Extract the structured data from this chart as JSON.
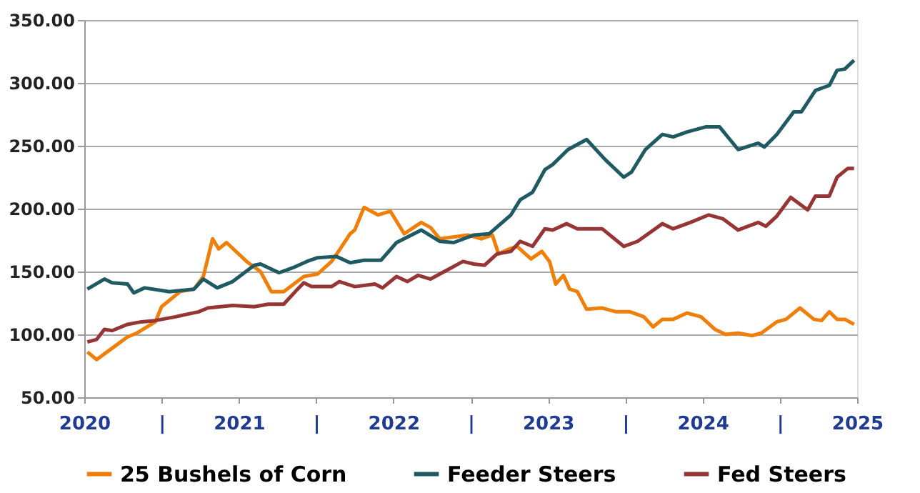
{
  "chart_data": {
    "type": "line",
    "xlim": [
      2020,
      2025
    ],
    "xticks": [
      2020,
      {
        "value": 2020.5,
        "label": "|"
      },
      2021,
      {
        "value": 2021.5,
        "label": "|"
      },
      2022,
      {
        "value": 2022.5,
        "label": "|"
      },
      2023,
      {
        "value": 2023.5,
        "label": "|"
      },
      2024,
      {
        "value": 2024.5,
        "label": "|"
      },
      2025
    ],
    "ylim": [
      50,
      350
    ],
    "yticks": [
      {
        "value": 50,
        "label": "50.00"
      },
      {
        "value": 100,
        "label": "100.00"
      },
      {
        "value": 150,
        "label": "150.00"
      },
      {
        "value": 200,
        "label": "200.00"
      },
      {
        "value": 250,
        "label": "250.00"
      },
      {
        "value": 300,
        "label": "300.00"
      },
      {
        "value": 350,
        "label": "350.00"
      }
    ],
    "grid": "y",
    "legend": "bottom",
    "marker": "none",
    "line_style": "solid",
    "series": [
      {
        "name": "25 Bushels of Corn",
        "color": "#f07f09",
        "x": [
          2020.02,
          2020.08,
          2020.18,
          2020.28,
          2020.34,
          2020.46,
          2020.5,
          2020.62,
          2020.71,
          2020.77,
          2020.83,
          2020.87,
          2020.92,
          2021.05,
          2021.14,
          2021.21,
          2021.29,
          2021.42,
          2021.51,
          2021.6,
          2021.65,
          2021.72,
          2021.75,
          2021.81,
          2021.9,
          2021.98,
          2022.07,
          2022.18,
          2022.24,
          2022.3,
          2022.48,
          2022.57,
          2022.64,
          2022.68,
          2022.75,
          2022.8,
          2022.89,
          2022.96,
          2023.01,
          2023.05,
          2023.1,
          2023.14,
          2023.19,
          2023.25,
          2023.35,
          2023.44,
          2023.53,
          2023.62,
          2023.68,
          2023.74,
          2023.81,
          2023.9,
          2023.99,
          2024.08,
          2024.15,
          2024.23,
          2024.32,
          2024.38,
          2024.48,
          2024.54,
          2024.63,
          2024.72,
          2024.77,
          2024.82,
          2024.87,
          2024.92,
          2024.98
        ],
        "values": [
          86,
          80,
          89,
          98,
          101,
          110,
          122,
          134,
          136,
          146,
          176,
          168,
          173,
          158,
          150,
          134,
          134,
          146,
          148,
          158,
          167,
          180,
          183,
          201,
          195,
          198,
          180,
          189,
          185,
          176,
          179,
          176,
          179,
          164,
          168,
          170,
          160,
          166,
          158,
          140,
          147,
          136,
          134,
          120,
          121,
          118,
          118,
          114,
          106,
          112,
          112,
          117,
          114,
          104,
          100,
          101,
          99,
          101,
          110,
          112,
          121,
          112,
          111,
          118,
          112,
          112,
          108
        ]
      },
      {
        "name": "Feeder Steers",
        "color": "#1f5a63",
        "x": [
          2020.02,
          2020.13,
          2020.18,
          2020.28,
          2020.32,
          2020.39,
          2020.55,
          2020.71,
          2020.77,
          2020.86,
          2020.96,
          2021.1,
          2021.14,
          2021.26,
          2021.35,
          2021.44,
          2021.51,
          2021.63,
          2021.72,
          2021.81,
          2021.92,
          2022.02,
          2022.18,
          2022.3,
          2022.39,
          2022.52,
          2022.62,
          2022.76,
          2022.82,
          2022.9,
          2022.98,
          2023.03,
          2023.13,
          2023.25,
          2023.37,
          2023.49,
          2023.54,
          2023.63,
          2023.74,
          2023.81,
          2023.9,
          2024.02,
          2024.11,
          2024.23,
          2024.36,
          2024.4,
          2024.48,
          2024.59,
          2024.64,
          2024.73,
          2024.82,
          2024.87,
          2024.92,
          2024.98
        ],
        "values": [
          136,
          144,
          141,
          140,
          133,
          137,
          134,
          136,
          144,
          137,
          142,
          155,
          156,
          149,
          153,
          158,
          161,
          162,
          157,
          159,
          159,
          173,
          183,
          174,
          173,
          179,
          180,
          195,
          207,
          213,
          231,
          235,
          247,
          255,
          239,
          225,
          229,
          247,
          259,
          257,
          261,
          265,
          265,
          247,
          252,
          249,
          259,
          277,
          277,
          294,
          298,
          310,
          311,
          318
        ]
      },
      {
        "name": "Fed Steers",
        "color": "#963634",
        "x": [
          2020.02,
          2020.08,
          2020.13,
          2020.18,
          2020.28,
          2020.37,
          2020.46,
          2020.59,
          2020.74,
          2020.8,
          2020.96,
          2021.1,
          2021.19,
          2021.29,
          2021.38,
          2021.42,
          2021.47,
          2021.6,
          2021.65,
          2021.75,
          2021.88,
          2021.93,
          2022.02,
          2022.09,
          2022.16,
          2022.24,
          2022.36,
          2022.45,
          2022.52,
          2022.59,
          2022.67,
          2022.76,
          2022.82,
          2022.9,
          2022.98,
          2023.03,
          2023.12,
          2023.19,
          2023.35,
          2023.49,
          2023.58,
          2023.74,
          2023.81,
          2023.92,
          2024.04,
          2024.13,
          2024.23,
          2024.36,
          2024.41,
          2024.48,
          2024.57,
          2024.68,
          2024.73,
          2024.82,
          2024.87,
          2024.94,
          2024.98
        ],
        "values": [
          94,
          96,
          104,
          103,
          108,
          110,
          111,
          114,
          118,
          121,
          123,
          122,
          124,
          124,
          136,
          141,
          138,
          138,
          142,
          138,
          140,
          137,
          146,
          142,
          147,
          144,
          152,
          158,
          156,
          155,
          164,
          166,
          174,
          170,
          184,
          183,
          188,
          184,
          184,
          170,
          174,
          188,
          184,
          189,
          195,
          192,
          183,
          189,
          186,
          194,
          209,
          199,
          210,
          210,
          225,
          232,
          232
        ]
      }
    ]
  }
}
